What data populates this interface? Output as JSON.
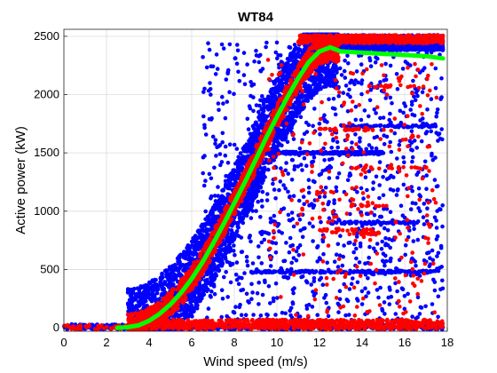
{
  "chart_data": {
    "type": "scatter",
    "title": "WT84",
    "xlabel": "Wind speed (m/s)",
    "ylabel": "Active power (kW)",
    "xlim": [
      0,
      18
    ],
    "ylim": [
      -30,
      2560
    ],
    "xticks": [
      0,
      2,
      4,
      6,
      8,
      10,
      12,
      14,
      16,
      18
    ],
    "yticks": [
      0,
      500,
      1000,
      1500,
      2000,
      2500
    ],
    "grid": true,
    "colors": {
      "series_a": "#0000ff",
      "series_b": "#ff0000",
      "curve": "#00ff00"
    },
    "series": [
      {
        "color": "#0000ff",
        "regions": [
          {
            "kind": "band",
            "x_range": [
              3.0,
              12.9
            ],
            "width_kw": 330,
            "count": 3200
          },
          {
            "kind": "rect",
            "x_range": [
              6.5,
              17.8
            ],
            "y_range": [
              50,
              2450
            ],
            "count": 1100
          },
          {
            "kind": "rect",
            "x_range": [
              11.5,
              17.8
            ],
            "y_range": [
              2380,
              2510
            ],
            "count": 1500
          },
          {
            "kind": "hline",
            "x_range": [
              9.5,
              15.0
            ],
            "y": 1500,
            "count": 260
          },
          {
            "kind": "hline",
            "x_range": [
              8.5,
              17.5
            ],
            "y": 480,
            "count": 160
          },
          {
            "kind": "hline",
            "x_range": [
              13.0,
              17.5
            ],
            "y": 1730,
            "count": 70
          },
          {
            "kind": "hline",
            "x_range": [
              12.5,
              16.5
            ],
            "y": 900,
            "count": 60
          },
          {
            "kind": "rect",
            "x_range": [
              0.0,
              17.8
            ],
            "y_range": [
              -15,
              30
            ],
            "count": 700
          }
        ]
      },
      {
        "color": "#ff0000",
        "regions": [
          {
            "kind": "band",
            "x_range": [
              3.0,
              12.9
            ],
            "width_kw": 110,
            "count": 1400
          },
          {
            "kind": "rect",
            "x_range": [
              11.0,
              17.8
            ],
            "y_range": [
              2440,
              2510
            ],
            "count": 700
          },
          {
            "kind": "rect",
            "x_range": [
              4.5,
              17.8
            ],
            "y_range": [
              0,
              70
            ],
            "count": 700
          },
          {
            "kind": "rect",
            "x_range": [
              0.0,
              17.8
            ],
            "y_range": [
              -15,
              25
            ],
            "count": 250
          },
          {
            "kind": "rect",
            "x_range": [
              9.5,
              17.5
            ],
            "y_range": [
              100,
              2300
            ],
            "count": 260
          },
          {
            "kind": "hline",
            "x_range": [
              12.0,
              14.5
            ],
            "y": 1700,
            "count": 30
          },
          {
            "kind": "hline",
            "x_range": [
              13.5,
              17.0
            ],
            "y": 1370,
            "count": 22
          },
          {
            "kind": "hline",
            "x_range": [
              11.5,
              14.5
            ],
            "y": 840,
            "count": 25
          },
          {
            "kind": "hline",
            "x_range": [
              12.5,
              14.8
            ],
            "y": 810,
            "count": 20
          },
          {
            "kind": "hline",
            "x_range": [
              13.5,
              15.2
            ],
            "y": 1050,
            "count": 12
          },
          {
            "kind": "hline",
            "x_range": [
              14.0,
              16.5
            ],
            "y": 2070,
            "count": 15
          }
        ]
      },
      {
        "color": "#00ff00",
        "kind": "line",
        "x": [
          2.5,
          3.0,
          3.5,
          4.0,
          4.5,
          5.0,
          5.5,
          6.0,
          6.5,
          7.0,
          7.5,
          8.0,
          8.5,
          9.0,
          9.5,
          10.0,
          10.5,
          11.0,
          11.5,
          12.0,
          12.5,
          13.0,
          14.0,
          15.0,
          16.0,
          17.0,
          17.8
        ],
        "y": [
          0,
          5,
          20,
          60,
          120,
          200,
          300,
          420,
          560,
          720,
          890,
          1070,
          1250,
          1440,
          1630,
          1810,
          1980,
          2140,
          2280,
          2370,
          2405,
          2370,
          2360,
          2350,
          2340,
          2330,
          2310
        ]
      }
    ]
  }
}
